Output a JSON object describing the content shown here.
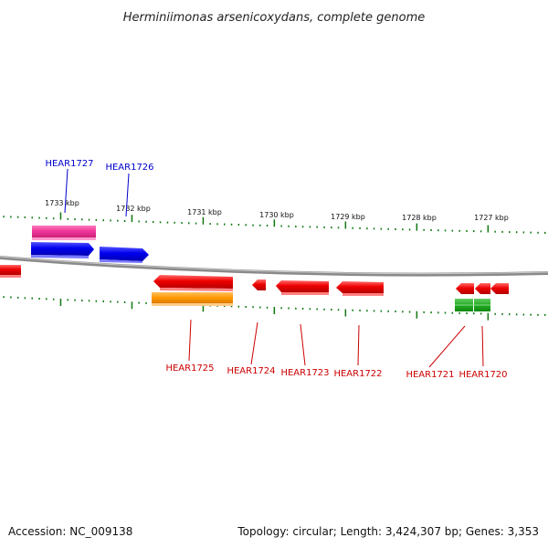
{
  "title": "Herminiimonas arsenicoxydans, complete genome",
  "footer": {
    "accession": "Accession: NC_009138",
    "summary": "Topology: circular; Length: 3,424,307 bp; Genes: 3,353"
  },
  "kbp_ticks": [
    "1733 kbp",
    "1732 kbp",
    "1731 kbp",
    "1730 kbp",
    "1729 kbp",
    "1728 kbp",
    "1727 kbp"
  ],
  "genes": [
    {
      "label": "HEAR1727",
      "color": "#ee3399",
      "strand": "forward"
    },
    {
      "label": "HEAR1726",
      "color": "#0000ee",
      "strand": "forward"
    },
    {
      "label": "HEAR1725",
      "color": "#ee0000",
      "strand": "reverse"
    },
    {
      "label": "HEAR1724",
      "color": "#ee0000",
      "strand": "reverse"
    },
    {
      "label": "HEAR1723",
      "color": "#ee0000",
      "strand": "reverse"
    },
    {
      "label": "HEAR1722",
      "color": "#ee0000",
      "strand": "reverse"
    },
    {
      "label": "HEAR1721",
      "color": "#ee0000",
      "strand": "reverse"
    },
    {
      "label": "HEAR1720",
      "color": "#ee0000",
      "strand": "reverse"
    }
  ],
  "colors": {
    "forward_label": "#0000cc",
    "reverse_label": "#cc0000",
    "tick": "#117711",
    "backbone": "#888888",
    "forward_blue": "#0000ee",
    "pink": "#ee3399",
    "red": "#ee0000",
    "orange": "#ff9900",
    "green": "#22aa22"
  }
}
